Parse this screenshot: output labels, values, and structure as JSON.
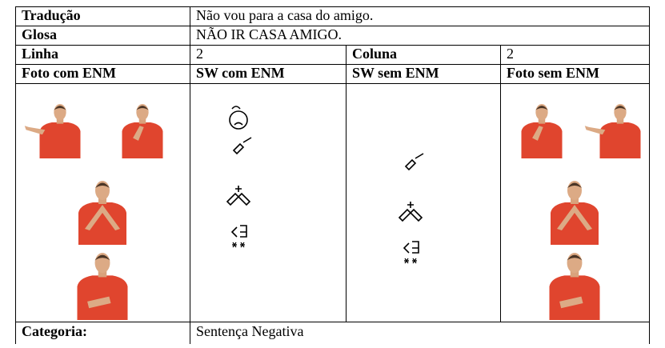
{
  "rows": [
    [
      "Tradução",
      "Não vou para a casa do amigo."
    ],
    [
      "Glosa",
      "NÃO IR CASA AMIGO."
    ],
    [
      "Linha",
      "2",
      "Coluna",
      "2"
    ],
    [
      "Foto com ENM",
      "SW com ENM",
      "SW sem ENM",
      "Foto sem ENM"
    ],
    [
      "Categoria:",
      "Sentença Negativa"
    ]
  ]
}
